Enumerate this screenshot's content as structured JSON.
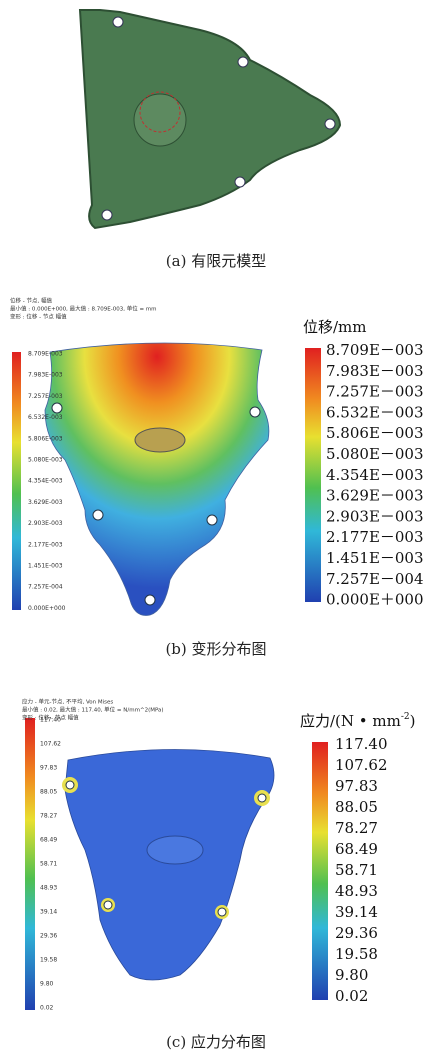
{
  "panel_a": {
    "caption": "(a) 有限元模型"
  },
  "panel_b": {
    "header": [
      "位移 - 节点, 幅值",
      "最小值 : 0.000E+000, 最大值 : 8.709E-003, 单位 = mm",
      "变形 : 位移 - 节点 幅值"
    ],
    "small_legend": [
      "8.709E-003",
      "7.983E-003",
      "7.257E-003",
      "6.532E-003",
      "5.806E-003",
      "5.080E-003",
      "4.354E-003",
      "3.629E-003",
      "2.903E-003",
      "2.177E-003",
      "1.451E-003",
      "7.257E-004",
      "0.000E+000"
    ],
    "legend_title": "位移/mm",
    "legend": [
      "8.709E－003",
      "7.983E－003",
      "7.257E－003",
      "6.532E－003",
      "5.806E－003",
      "5.080E－003",
      "4.354E－003",
      "3.629E－003",
      "2.903E－003",
      "2.177E－003",
      "1.451E－003",
      "7.257E－004",
      "0.000E＋000"
    ],
    "caption": "(b) 变形分布图"
  },
  "panel_c": {
    "header": [
      "应力 - 单元-节点, 不平均, Von Mises",
      "最小值 : 0.02, 最大值 : 117.40, 单位 = N/mm^2(MPa)",
      "变形 : 位移 - 节点 幅值"
    ],
    "small_legend": [
      "117.40",
      "107.62",
      "97.83",
      "88.05",
      "78.27",
      "68.49",
      "58.71",
      "48.93",
      "39.14",
      "29.36",
      "19.58",
      "9.80",
      "0.02"
    ],
    "legend_title": "应力/(N • mm",
    "legend_title_sup": "-2",
    "legend_title_end": ")",
    "legend": [
      "117.40",
      "107.62",
      "97.83",
      "88.05",
      "78.27",
      "68.49",
      "58.71",
      "48.93",
      "39.14",
      "29.36",
      "19.58",
      "9.80",
      "0.02"
    ],
    "caption": "(c) 应力分布图"
  }
}
